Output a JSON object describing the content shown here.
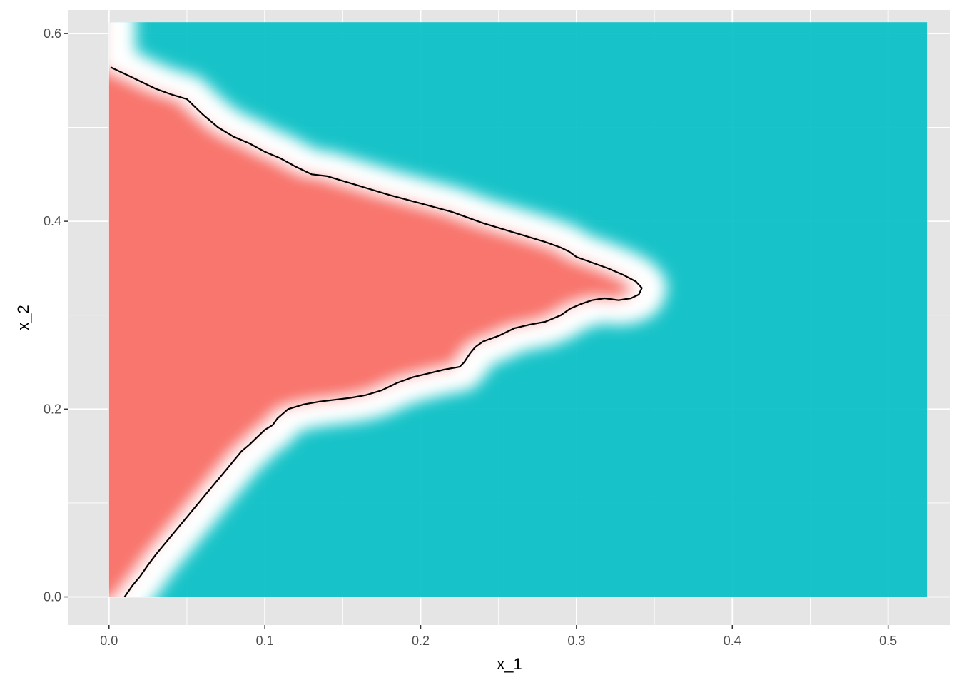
{
  "chart_data": {
    "type": "heatmap",
    "title": "",
    "xlabel": "x_1",
    "ylabel": "x_2",
    "xlim": [
      -0.026,
      0.54
    ],
    "ylim": [
      -0.03,
      0.625
    ],
    "x_ticks": [
      0.0,
      0.1,
      0.2,
      0.3,
      0.4,
      0.5
    ],
    "x_tick_labels": [
      "0.0",
      "0.1",
      "0.2",
      "0.3",
      "0.4",
      "0.5"
    ],
    "y_ticks": [
      0.0,
      0.2,
      0.4,
      0.6
    ],
    "y_tick_labels": [
      "0.0",
      "0.2",
      "0.4",
      "0.6"
    ],
    "x_minor": [
      0.05,
      0.15,
      0.25,
      0.35,
      0.45
    ],
    "y_minor": [
      0.1,
      0.3,
      0.5
    ],
    "grid": true,
    "legend": "none",
    "fill_extent": {
      "x": [
        0.0,
        0.525
      ],
      "y": [
        0.0,
        0.612
      ]
    },
    "colors": {
      "panel_background": "#e5e5e5",
      "grid_line": "#ffffff",
      "class_a_fill": "#f8766d",
      "class_b_fill": "#00bfc4",
      "boundary_fill": "#ffffff",
      "boundary_line": "#000000"
    },
    "decision_boundary": [
      [
        0.001,
        0.564
      ],
      [
        0.01,
        0.557
      ],
      [
        0.02,
        0.549
      ],
      [
        0.03,
        0.541
      ],
      [
        0.04,
        0.535
      ],
      [
        0.05,
        0.53
      ],
      [
        0.06,
        0.514
      ],
      [
        0.07,
        0.5
      ],
      [
        0.08,
        0.49
      ],
      [
        0.09,
        0.483
      ],
      [
        0.1,
        0.474
      ],
      [
        0.11,
        0.467
      ],
      [
        0.12,
        0.458
      ],
      [
        0.13,
        0.45
      ],
      [
        0.14,
        0.448
      ],
      [
        0.16,
        0.438
      ],
      [
        0.18,
        0.428
      ],
      [
        0.2,
        0.419
      ],
      [
        0.22,
        0.41
      ],
      [
        0.24,
        0.398
      ],
      [
        0.26,
        0.388
      ],
      [
        0.28,
        0.378
      ],
      [
        0.29,
        0.372
      ],
      [
        0.295,
        0.368
      ],
      [
        0.3,
        0.362
      ],
      [
        0.31,
        0.356
      ],
      [
        0.32,
        0.35
      ],
      [
        0.33,
        0.343
      ],
      [
        0.338,
        0.336
      ],
      [
        0.342,
        0.329
      ],
      [
        0.34,
        0.322
      ],
      [
        0.335,
        0.318
      ],
      [
        0.327,
        0.316
      ],
      [
        0.318,
        0.318
      ],
      [
        0.31,
        0.316
      ],
      [
        0.303,
        0.312
      ],
      [
        0.296,
        0.307
      ],
      [
        0.29,
        0.3
      ],
      [
        0.28,
        0.293
      ],
      [
        0.27,
        0.29
      ],
      [
        0.26,
        0.286
      ],
      [
        0.25,
        0.278
      ],
      [
        0.24,
        0.272
      ],
      [
        0.235,
        0.266
      ],
      [
        0.232,
        0.26
      ],
      [
        0.23,
        0.255
      ],
      [
        0.228,
        0.25
      ],
      [
        0.225,
        0.245
      ],
      [
        0.215,
        0.242
      ],
      [
        0.205,
        0.238
      ],
      [
        0.195,
        0.234
      ],
      [
        0.185,
        0.228
      ],
      [
        0.175,
        0.22
      ],
      [
        0.165,
        0.215
      ],
      [
        0.155,
        0.212
      ],
      [
        0.145,
        0.21
      ],
      [
        0.135,
        0.208
      ],
      [
        0.125,
        0.205
      ],
      [
        0.115,
        0.2
      ],
      [
        0.108,
        0.19
      ],
      [
        0.105,
        0.183
      ],
      [
        0.1,
        0.178
      ],
      [
        0.095,
        0.17
      ],
      [
        0.09,
        0.162
      ],
      [
        0.085,
        0.155
      ],
      [
        0.08,
        0.145
      ],
      [
        0.075,
        0.135
      ],
      [
        0.07,
        0.125
      ],
      [
        0.065,
        0.115
      ],
      [
        0.06,
        0.105
      ],
      [
        0.055,
        0.095
      ],
      [
        0.05,
        0.085
      ],
      [
        0.045,
        0.075
      ],
      [
        0.04,
        0.065
      ],
      [
        0.035,
        0.055
      ],
      [
        0.03,
        0.045
      ],
      [
        0.025,
        0.034
      ],
      [
        0.02,
        0.022
      ],
      [
        0.015,
        0.012
      ],
      [
        0.01,
        0.0
      ]
    ]
  }
}
